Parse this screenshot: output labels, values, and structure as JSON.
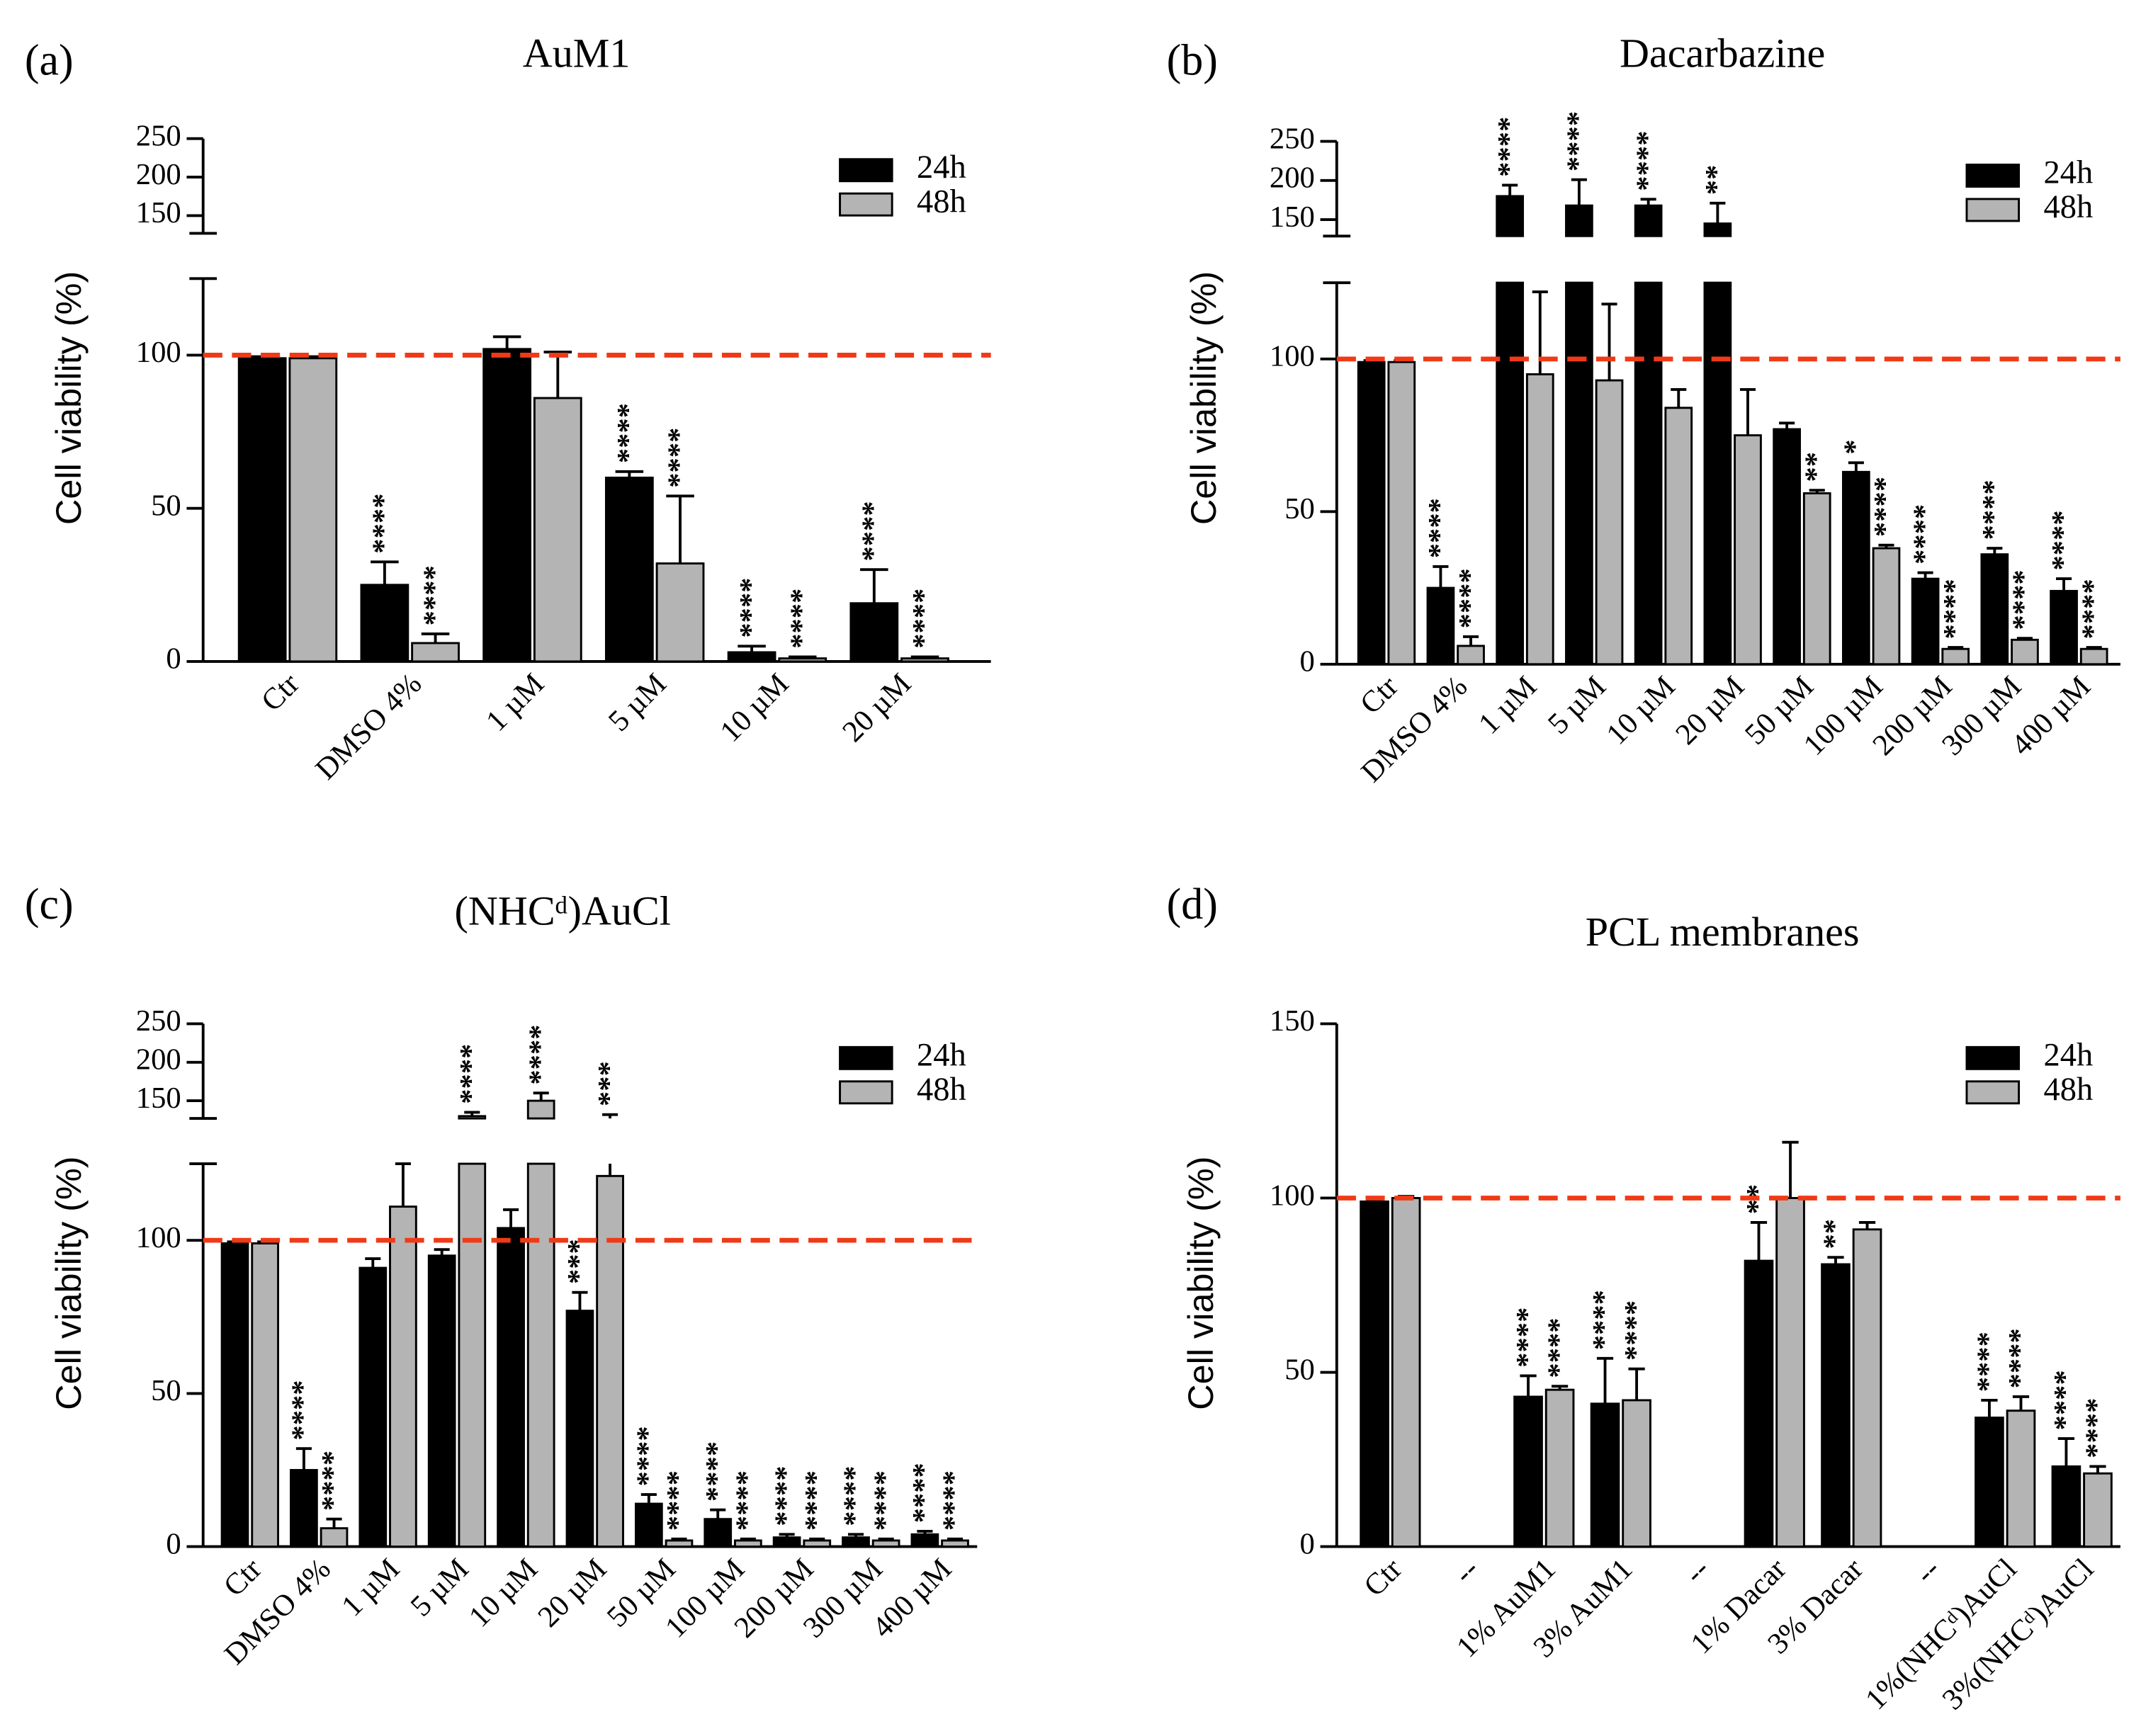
{
  "chart_data": [
    {
      "type": "bar",
      "panel_label": "(a)",
      "title": "AuM1",
      "ylabel": "Cell viability (%)",
      "categories": [
        "Ctr",
        "DMSO 4%",
        "1 µM",
        "5 µM",
        "10 µM",
        "20 µM"
      ],
      "series": [
        {
          "name": "24h",
          "color": "#000000",
          "values": [
            99,
            25,
            102,
            60,
            3,
            19
          ],
          "errors": [
            0.5,
            7.5,
            4,
            2,
            2,
            11
          ],
          "labels": [
            null,
            "****",
            null,
            "****",
            "****",
            "****"
          ]
        },
        {
          "name": "48h",
          "color": "#b4b4b4",
          "values": [
            99,
            6,
            86,
            32,
            1,
            1
          ],
          "errors": [
            0.5,
            3,
            15,
            22,
            0.5,
            0.5
          ],
          "labels": [
            null,
            "****",
            null,
            "****",
            "****",
            "****"
          ]
        }
      ],
      "ylim": [
        0,
        125
      ],
      "yticks": [
        0,
        50,
        100
      ],
      "y_break": {
        "ylim": [
          127,
          250
        ],
        "yticks": [
          150,
          200,
          250
        ]
      },
      "reference_line": {
        "value": 100,
        "color": "#f03a17"
      },
      "legend": "upper right"
    },
    {
      "type": "bar",
      "panel_label": "(b)",
      "title": "Dacarbazine",
      "ylabel": "Cell viability (%)",
      "categories": [
        "Ctr",
        "DMSO 4%",
        "1 µM",
        "5 µM",
        "10 µM",
        "20 µM",
        "50 µM",
        "100 µM",
        "200 µM",
        "300 µM",
        "400 µM"
      ],
      "series": [
        {
          "name": "24h",
          "color": "#000000",
          "values": [
            99,
            25,
            180,
            168,
            168,
            145,
            77,
            63,
            28,
            36,
            24
          ],
          "errors": [
            0.5,
            7,
            14,
            33,
            8,
            26,
            2,
            3,
            2,
            2,
            4
          ],
          "labels": [
            null,
            "****",
            "****",
            "****",
            "****",
            "**",
            null,
            "*",
            "****",
            "****",
            "****"
          ]
        },
        {
          "name": "48h",
          "color": "#b4b4b4",
          "values": [
            99,
            6,
            95,
            93,
            84,
            75,
            56,
            38,
            5,
            8,
            5
          ],
          "errors": [
            0.5,
            3,
            27,
            25,
            6,
            15,
            1,
            1,
            0.5,
            0.5,
            0.5
          ],
          "labels": [
            null,
            "****",
            null,
            null,
            null,
            null,
            "**",
            "****",
            "****",
            "****",
            "****"
          ]
        }
      ],
      "ylim": [
        0,
        125
      ],
      "yticks": [
        0,
        50,
        100
      ],
      "y_break": {
        "ylim": [
          129,
          250
        ],
        "yticks": [
          150,
          200,
          250
        ]
      },
      "reference_line": {
        "value": 100,
        "color": "#f03a17"
      },
      "legend": "upper right"
    },
    {
      "type": "bar",
      "panel_label": "(c)",
      "title": "(NHCᵈ)AuCl",
      "ylabel": "Cell viability (%)",
      "categories": [
        "Ctr",
        "DMSO 4%",
        "1 µM",
        "5 µM",
        "10 µM",
        "20 µM",
        "50 µM",
        "100 µM",
        "200 µM",
        "300 µM",
        "400 µM"
      ],
      "series": [
        {
          "name": "24h",
          "color": "#000000",
          "values": [
            99,
            25,
            91,
            95,
            104,
            77,
            14,
            9,
            3,
            3,
            4
          ],
          "errors": [
            0.5,
            7,
            3,
            2,
            6,
            6,
            3,
            3,
            1,
            1,
            1
          ],
          "labels": [
            null,
            "****",
            null,
            null,
            null,
            "***",
            "****",
            "****",
            "****",
            "****",
            "****"
          ]
        },
        {
          "name": "48h",
          "color": "#b4b4b4",
          "values": [
            99,
            6,
            111,
            130,
            150,
            121,
            2,
            2,
            2,
            2,
            2
          ],
          "errors": [
            0.5,
            3,
            14,
            5,
            10,
            11,
            0.5,
            0.5,
            0.5,
            0.5,
            0.5
          ],
          "labels": [
            null,
            "****",
            null,
            "****",
            "****",
            "***",
            "****",
            "****",
            "****",
            "****",
            "****"
          ]
        }
      ],
      "ylim": [
        0,
        125
      ],
      "yticks": [
        0,
        50,
        100
      ],
      "y_break": {
        "ylim": [
          127,
          250
        ],
        "yticks": [
          150,
          200,
          250
        ]
      },
      "reference_line": {
        "value": 100,
        "color": "#f03a17"
      },
      "legend": "upper right"
    },
    {
      "type": "bar",
      "panel_label": "(d)",
      "title": "PCL membranes",
      "ylabel": "Cell viability (%)",
      "categories": [
        "Ctr",
        "--",
        "1% AuM1",
        "3% AuM1",
        "--",
        "1% Dacar",
        "3% Dacar",
        "--",
        "1%(NHCᵈ)AuCl",
        "3%(NHCᵈ)AuCl"
      ],
      "series": [
        {
          "name": "24h",
          "color": "#000000",
          "values": [
            99,
            null,
            43,
            41,
            null,
            82,
            81,
            null,
            37,
            23
          ],
          "errors": [
            0.5,
            null,
            6,
            13,
            null,
            11,
            2,
            null,
            5,
            8
          ],
          "labels": [
            null,
            null,
            "****",
            "****",
            null,
            "**",
            "**",
            null,
            "****",
            "****"
          ]
        },
        {
          "name": "48h",
          "color": "#b4b4b4",
          "values": [
            100,
            null,
            45,
            42,
            null,
            100,
            91,
            null,
            39,
            21
          ],
          "errors": [
            0.5,
            null,
            1,
            9,
            null,
            16,
            2,
            null,
            4,
            2
          ],
          "labels": [
            null,
            null,
            "****",
            "****",
            null,
            null,
            null,
            null,
            "****",
            "****"
          ]
        }
      ],
      "ylim": [
        0,
        150
      ],
      "yticks": [
        0,
        50,
        100,
        150
      ],
      "reference_line": {
        "value": 100,
        "color": "#f03a17"
      },
      "legend": "upper right"
    }
  ]
}
